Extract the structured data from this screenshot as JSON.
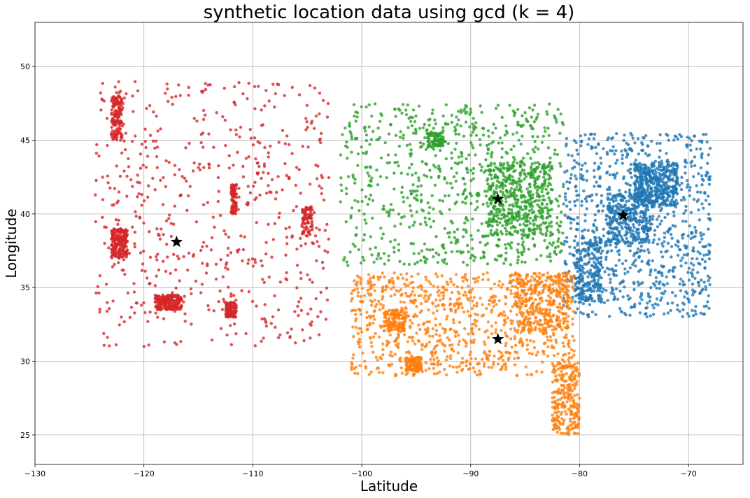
{
  "chart_data": {
    "type": "scatter",
    "title": "synthetic location data using gcd (k = 4)",
    "xlabel": "Latitude",
    "ylabel": "Longitude",
    "xlim": [
      -130,
      -65
    ],
    "ylim": [
      23,
      53
    ],
    "x_ticks": [
      -130,
      -120,
      -110,
      -100,
      -90,
      -80,
      -70
    ],
    "y_ticks": [
      25,
      30,
      35,
      40,
      45,
      50
    ],
    "x_tick_labels": [
      "−130",
      "−120",
      "−110",
      "−100",
      "−90",
      "−80",
      "−70"
    ],
    "y_tick_labels": [
      "25",
      "30",
      "35",
      "40",
      "45",
      "50"
    ],
    "grid": true,
    "legend": "none",
    "clusters": [
      {
        "color": "#1f77b4",
        "blobs": [
          {
            "x": [
              -81.5,
              -68
            ],
            "y": [
              33,
              45.5
            ],
            "n": 900
          },
          {
            "x": [
              -75,
              -71
            ],
            "y": [
              40.5,
              43.5
            ],
            "n": 400
          },
          {
            "x": [
              -77.5,
              -73.5
            ],
            "y": [
              38,
              41.5
            ],
            "n": 300
          },
          {
            "x": [
              -80.5,
              -78
            ],
            "y": [
              34,
              38.5
            ],
            "n": 200
          }
        ]
      },
      {
        "color": "#ff7f0e",
        "blobs": [
          {
            "x": [
              -101,
              -80.5
            ],
            "y": [
              29,
              36
            ],
            "n": 900
          },
          {
            "x": [
              -82.5,
              -80
            ],
            "y": [
              25,
              30
            ],
            "n": 250
          },
          {
            "x": [
              -86,
              -81
            ],
            "y": [
              32,
              36
            ],
            "n": 300
          },
          {
            "x": [
              -98,
              -96
            ],
            "y": [
              32,
              33.5
            ],
            "n": 120
          },
          {
            "x": [
              -96,
              -94.5
            ],
            "y": [
              29.3,
              30.3
            ],
            "n": 120
          }
        ]
      },
      {
        "color": "#2ca02c",
        "blobs": [
          {
            "x": [
              -102,
              -81.5
            ],
            "y": [
              36.5,
              47.5
            ],
            "n": 800
          },
          {
            "x": [
              -88.5,
              -82.5
            ],
            "y": [
              38.5,
              43.5
            ],
            "n": 450
          },
          {
            "x": [
              -94,
              -92.5
            ],
            "y": [
              44.5,
              45.5
            ],
            "n": 80
          }
        ]
      },
      {
        "color": "#d62728",
        "blobs": [
          {
            "x": [
              -124.5,
              -103
            ],
            "y": [
              31,
              49
            ],
            "n": 600
          },
          {
            "x": [
              -119,
              -116.5
            ],
            "y": [
              33.5,
              34.5
            ],
            "n": 200
          },
          {
            "x": [
              -123,
              -121.5
            ],
            "y": [
              37,
              39
            ],
            "n": 200
          },
          {
            "x": [
              -123,
              -122
            ],
            "y": [
              45,
              48
            ],
            "n": 150
          },
          {
            "x": [
              -112.5,
              -111.5
            ],
            "y": [
              33,
              34
            ],
            "n": 100
          },
          {
            "x": [
              -112,
              -111.5
            ],
            "y": [
              40,
              42
            ],
            "n": 80
          },
          {
            "x": [
              -105.5,
              -104.5
            ],
            "y": [
              38.5,
              40.5
            ],
            "n": 80
          }
        ]
      }
    ],
    "centroids": [
      {
        "x": -76,
        "y": 39.9
      },
      {
        "x": -87.5,
        "y": 31.5
      },
      {
        "x": -87.5,
        "y": 41
      },
      {
        "x": -117,
        "y": 38.1
      }
    ]
  }
}
